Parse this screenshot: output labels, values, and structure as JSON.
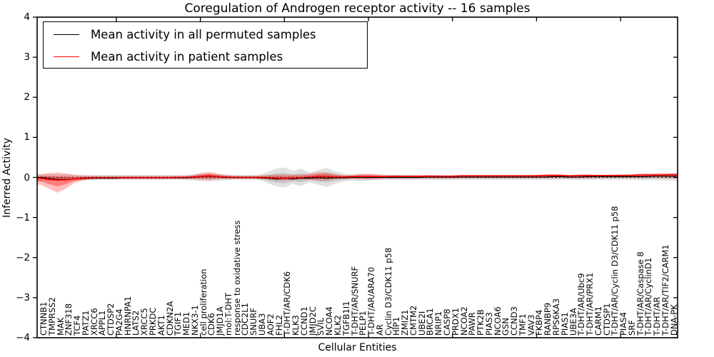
{
  "title": "Coregulation of Androgen receptor activity -- 16 samples",
  "axes": {
    "x_label": "Cellular Entities",
    "y_label": "Inferred Activity",
    "y_tick_labels": [
      "4",
      "3",
      "2",
      "1",
      "0",
      "−1",
      "−2",
      "−3",
      "−4"
    ],
    "y_tick_values": [
      4,
      3,
      2,
      1,
      0,
      -1,
      -2,
      -3,
      -4
    ]
  },
  "legend": {
    "items": [
      {
        "label": "Mean activity in all permuted samples",
        "color": "#000000"
      },
      {
        "label": "Mean activity in patient samples",
        "color": "#ff0000"
      }
    ]
  },
  "colors": {
    "permuted_line": "#000000",
    "patient_line": "#ff0000",
    "permuted_band": "#787878",
    "patient_band": "#ff0000",
    "zero_line": "#000000"
  },
  "chart_data": {
    "type": "area",
    "title": "Coregulation of Androgen receptor activity -- 16 samples",
    "xlabel": "Cellular Entities",
    "ylabel": "Inferred Activity",
    "ylim": [
      -4,
      4
    ],
    "legend_position": "upper left",
    "grid": false,
    "zero_reference_line": 0,
    "categories": [
      "CTNNB1",
      "TMPRSS2",
      "MAK",
      "ZNF318",
      "TCF4",
      "PATZ1",
      "XRCC6",
      "APPL1",
      "CTDSP2",
      "PA2G4",
      "HNRNPA1",
      "LATS2",
      "XRCC5",
      "PRKDC",
      "AKT1",
      "CDKN2A",
      "TGIF1",
      "MED1",
      "NKX3-1",
      "cell proliferation",
      "CDK6",
      "JMJD1A",
      "mol:T-DHT",
      "response to oxidative stress",
      "CDC2L1",
      "SNURF",
      "UBA3",
      "AOF2",
      "FHL2",
      "T-DHT/AR/CDK6",
      "KLK3",
      "CCND1",
      "JMJD2C",
      "SVIL",
      "NCOA4",
      "KLK2",
      "TGFB1I1",
      "T-DHT/AR/SNURF",
      "PELP1",
      "T-DHT/AR/ARA70",
      "AR",
      "Cyclin D3/CDK11 p58",
      "HIP1",
      "ZMIZ1",
      "CMTM2",
      "UBE2I",
      "BRCA1",
      "NRIP1",
      "CASP8",
      "PRDX1",
      "NCOA2",
      "PAWR",
      "PTK2B",
      "PIAS3",
      "NCOA6",
      "GSN",
      "CCND3",
      "TMF1",
      "VAV3",
      "FKBP4",
      "RANBP9",
      "RPS6KA3",
      "PIAS1",
      "UBE3A",
      "T-DHT/AR/Ubc9",
      "T-DHT/AR/PRX1",
      "CARM1",
      "CTDSP1",
      "T-DHT/AR/Cyclin D3/CDK11 p58",
      "PIAS4",
      "SRF",
      "T-DHT/AR/Caspase 8",
      "T-DHT/AR/CyclinD1",
      "T-DHT/AR",
      "T-DHT/AR/TIF2/CARM1",
      "DNA-PK"
    ],
    "series": [
      {
        "name": "Mean activity in all permuted samples",
        "color": "#000000",
        "values": [
          0.0,
          -0.03,
          -0.05,
          -0.05,
          -0.04,
          -0.03,
          -0.02,
          -0.02,
          -0.02,
          -0.02,
          -0.01,
          -0.01,
          -0.01,
          -0.01,
          -0.01,
          -0.01,
          -0.01,
          -0.01,
          0.0,
          0.02,
          0.03,
          0.02,
          0.0,
          0.0,
          0.0,
          0.0,
          -0.01,
          -0.02,
          -0.04,
          -0.03,
          -0.04,
          -0.02,
          -0.02,
          -0.01,
          -0.02,
          -0.01,
          -0.01,
          0.0,
          0.0,
          0.0,
          0.0,
          0.0,
          0.0,
          0.0,
          0.0,
          0.0,
          0.01,
          0.01,
          0.01,
          0.01,
          0.01,
          0.01,
          0.01,
          0.01,
          0.01,
          0.01,
          0.01,
          0.01,
          0.01,
          0.01,
          0.01,
          0.02,
          0.02,
          0.01,
          0.01,
          0.02,
          0.02,
          0.02,
          0.02,
          0.02,
          0.02,
          0.02,
          0.02,
          0.03,
          0.03,
          0.03
        ]
      },
      {
        "name": "Mean activity in patient samples",
        "color": "#ff0000",
        "values": [
          -0.02,
          -0.05,
          -0.07,
          -0.06,
          -0.04,
          -0.02,
          -0.01,
          -0.01,
          -0.01,
          -0.01,
          -0.01,
          -0.01,
          -0.01,
          -0.01,
          -0.01,
          -0.01,
          0.0,
          0.0,
          0.01,
          0.02,
          0.04,
          0.02,
          0.01,
          0.0,
          0.0,
          0.0,
          0.0,
          -0.01,
          -0.02,
          -0.03,
          -0.02,
          -0.01,
          0.01,
          0.02,
          0.02,
          0.01,
          0.01,
          0.02,
          0.02,
          0.02,
          0.02,
          0.02,
          0.03,
          0.03,
          0.03,
          0.03,
          0.03,
          0.03,
          0.03,
          0.03,
          0.04,
          0.04,
          0.04,
          0.04,
          0.04,
          0.04,
          0.04,
          0.04,
          0.04,
          0.04,
          0.05,
          0.05,
          0.05,
          0.04,
          0.05,
          0.05,
          0.05,
          0.05,
          0.05,
          0.05,
          0.05,
          0.06,
          0.06,
          0.06,
          0.06,
          0.07
        ]
      }
    ],
    "bands": [
      {
        "name": "permuted-samples-distribution",
        "color": "#787878",
        "upper": [
          0.08,
          0.08,
          0.08,
          0.08,
          0.07,
          0.07,
          0.06,
          0.06,
          0.06,
          0.06,
          0.06,
          0.06,
          0.06,
          0.06,
          0.06,
          0.06,
          0.06,
          0.06,
          0.07,
          0.09,
          0.1,
          0.09,
          0.07,
          0.06,
          0.06,
          0.06,
          0.07,
          0.14,
          0.22,
          0.25,
          0.16,
          0.22,
          0.12,
          0.18,
          0.24,
          0.16,
          0.1,
          0.08,
          0.1,
          0.08,
          0.07,
          0.06,
          0.06,
          0.06,
          0.06,
          0.06,
          0.06,
          0.06,
          0.06,
          0.06,
          0.06,
          0.06,
          0.06,
          0.06,
          0.06,
          0.06,
          0.06,
          0.06,
          0.06,
          0.06,
          0.06,
          0.06,
          0.06,
          0.06,
          0.06,
          0.06,
          0.06,
          0.06,
          0.06,
          0.06,
          0.06,
          0.07,
          0.07,
          0.07,
          0.08,
          0.08
        ],
        "lower": [
          -0.08,
          -0.08,
          -0.08,
          -0.08,
          -0.07,
          -0.07,
          -0.06,
          -0.06,
          -0.06,
          -0.06,
          -0.06,
          -0.06,
          -0.06,
          -0.06,
          -0.06,
          -0.06,
          -0.06,
          -0.06,
          -0.07,
          -0.09,
          -0.1,
          -0.09,
          -0.07,
          -0.06,
          -0.06,
          -0.06,
          -0.07,
          -0.14,
          -0.22,
          -0.25,
          -0.16,
          -0.22,
          -0.12,
          -0.18,
          -0.24,
          -0.16,
          -0.1,
          -0.08,
          -0.1,
          -0.08,
          -0.07,
          -0.06,
          -0.06,
          -0.06,
          -0.06,
          -0.06,
          -0.06,
          -0.06,
          -0.06,
          -0.06,
          -0.06,
          -0.06,
          -0.06,
          -0.06,
          -0.06,
          -0.06,
          -0.06,
          -0.06,
          -0.06,
          -0.06,
          -0.06,
          -0.06,
          -0.06,
          -0.06,
          -0.06,
          -0.06,
          -0.06,
          -0.06,
          -0.06,
          -0.06,
          -0.06,
          -0.07,
          -0.07,
          -0.07,
          -0.08,
          -0.08
        ]
      },
      {
        "name": "patient-samples-distribution",
        "color": "#ff0000",
        "upper": [
          0.08,
          0.11,
          0.12,
          0.1,
          0.06,
          0.05,
          0.04,
          0.04,
          0.04,
          0.04,
          0.04,
          0.04,
          0.04,
          0.04,
          0.04,
          0.04,
          0.04,
          0.04,
          0.06,
          0.11,
          0.14,
          0.1,
          0.06,
          0.05,
          0.04,
          0.04,
          0.05,
          0.06,
          0.08,
          0.07,
          0.08,
          0.07,
          0.1,
          0.13,
          0.13,
          0.09,
          0.06,
          0.06,
          0.08,
          0.09,
          0.08,
          0.06,
          0.06,
          0.05,
          0.05,
          0.05,
          0.06,
          0.06,
          0.05,
          0.05,
          0.06,
          0.06,
          0.06,
          0.06,
          0.06,
          0.06,
          0.06,
          0.06,
          0.06,
          0.07,
          0.08,
          0.09,
          0.08,
          0.06,
          0.07,
          0.08,
          0.07,
          0.06,
          0.07,
          0.08,
          0.08,
          0.09,
          0.1,
          0.1,
          0.11,
          0.11
        ],
        "lower": [
          -0.18,
          -0.28,
          -0.38,
          -0.28,
          -0.14,
          -0.08,
          -0.05,
          -0.04,
          -0.04,
          -0.04,
          -0.04,
          -0.04,
          -0.04,
          -0.04,
          -0.04,
          -0.04,
          -0.04,
          -0.04,
          -0.05,
          -0.06,
          -0.07,
          -0.05,
          -0.04,
          -0.04,
          -0.04,
          -0.04,
          -0.04,
          -0.05,
          -0.07,
          -0.07,
          -0.06,
          -0.05,
          -0.06,
          -0.08,
          -0.08,
          -0.05,
          -0.04,
          -0.04,
          -0.04,
          -0.05,
          -0.04,
          -0.03,
          -0.03,
          -0.03,
          -0.03,
          -0.03,
          -0.03,
          -0.03,
          -0.03,
          -0.03,
          -0.02,
          -0.02,
          -0.02,
          -0.02,
          -0.02,
          -0.02,
          -0.02,
          -0.02,
          -0.02,
          -0.02,
          -0.02,
          -0.02,
          -0.02,
          -0.02,
          -0.02,
          -0.02,
          -0.02,
          -0.01,
          -0.01,
          -0.01,
          -0.01,
          -0.01,
          -0.01,
          -0.01,
          -0.01,
          -0.02
        ]
      }
    ]
  }
}
